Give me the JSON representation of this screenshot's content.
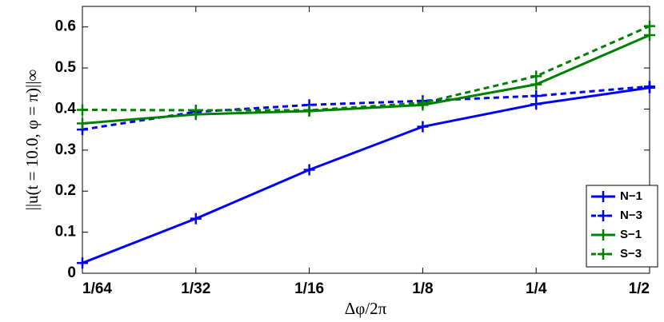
{
  "chart_data": {
    "type": "line",
    "x_label": "Δφ/2π",
    "y_label": "||u(t = 10.0, φ = π)||∞",
    "categories": [
      "1/64",
      "1/32",
      "1/16",
      "1/8",
      "1/4",
      "1/2"
    ],
    "series": [
      {
        "name": "N−1",
        "color": "#0000ff",
        "linestyle": "solid",
        "values": [
          0.025,
          0.133,
          0.252,
          0.357,
          0.412,
          0.452
        ]
      },
      {
        "name": "N−3",
        "color": "#0000ff",
        "linestyle": "dashed",
        "values": [
          0.35,
          0.393,
          0.41,
          0.42,
          0.432,
          0.455
        ]
      },
      {
        "name": "S−1",
        "color": "#008000",
        "linestyle": "solid",
        "values": [
          0.365,
          0.387,
          0.395,
          0.41,
          0.46,
          0.58
        ]
      },
      {
        "name": "S−3",
        "color": "#008000",
        "linestyle": "dashed",
        "values": [
          0.398,
          0.397,
          0.397,
          0.415,
          0.48,
          0.602
        ]
      }
    ],
    "ylim": [
      0,
      0.65
    ],
    "yticks": [
      0,
      0.1,
      0.2,
      0.3,
      0.4,
      0.5,
      0.6
    ],
    "grid": false,
    "legend": "lower right"
  }
}
